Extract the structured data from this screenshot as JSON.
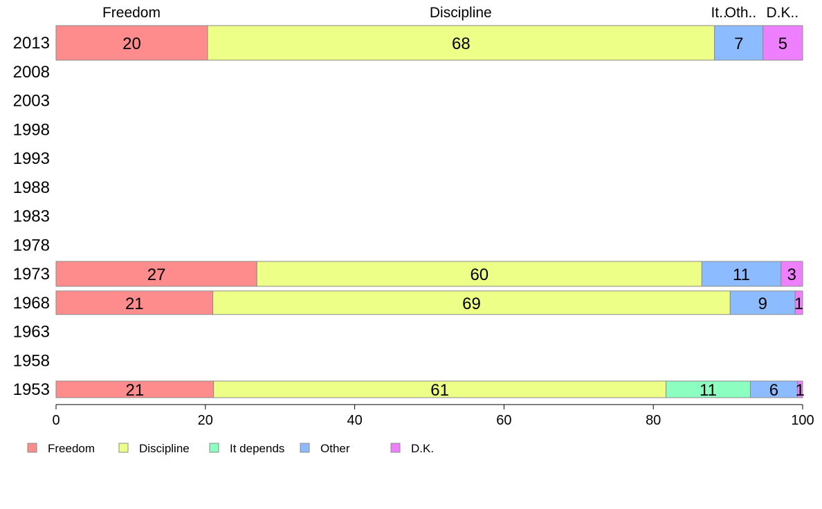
{
  "chart_data": {
    "type": "bar",
    "orientation": "horizontal",
    "stacked": true,
    "x": [
      1953,
      1958,
      1963,
      1968,
      1973,
      1978,
      1983,
      1988,
      1993,
      1998,
      2003,
      2008,
      2013
    ],
    "xlim": [
      0,
      100
    ],
    "x_ticks": [
      0,
      20,
      40,
      60,
      80,
      100
    ],
    "top_labels": [
      {
        "text": "Freedom",
        "at": 10.1
      },
      {
        "text": "Discipline",
        "at": 54.2
      },
      {
        "text": "It..",
        "at": 88.8
      },
      {
        "text": "Oth..",
        "at": 91.7
      },
      {
        "text": "D.K..",
        "at": 97.3
      }
    ],
    "series": [
      {
        "name": "Freedom",
        "color": "#ff8c8c"
      },
      {
        "name": "Discipline",
        "color": "#eeff88"
      },
      {
        "name": "It depends",
        "color": "#8cffc0"
      },
      {
        "name": "Other",
        "color": "#8cbcff"
      },
      {
        "name": "D.K.",
        "color": "#ee80ff"
      }
    ],
    "bars": [
      {
        "year": 2013,
        "values": [
          20.3,
          67.9,
          0,
          6.5,
          5.3
        ],
        "labels": [
          "20",
          "68",
          "",
          "7",
          "5"
        ]
      },
      {
        "year": 1973,
        "values": [
          26.9,
          59.6,
          0,
          10.6,
          2.9
        ],
        "labels": [
          "27",
          "60",
          "",
          "11",
          "3"
        ]
      },
      {
        "year": 1968,
        "values": [
          21.0,
          69.3,
          0,
          8.7,
          1.0
        ],
        "labels": [
          "21",
          "69",
          "",
          "9",
          "1"
        ]
      },
      {
        "year": 1953,
        "values": [
          21.1,
          60.6,
          11.3,
          6.3,
          0.7
        ],
        "labels": [
          "21",
          "61",
          "11",
          "6",
          "1"
        ]
      }
    ],
    "legend_position": "bottom-left"
  }
}
